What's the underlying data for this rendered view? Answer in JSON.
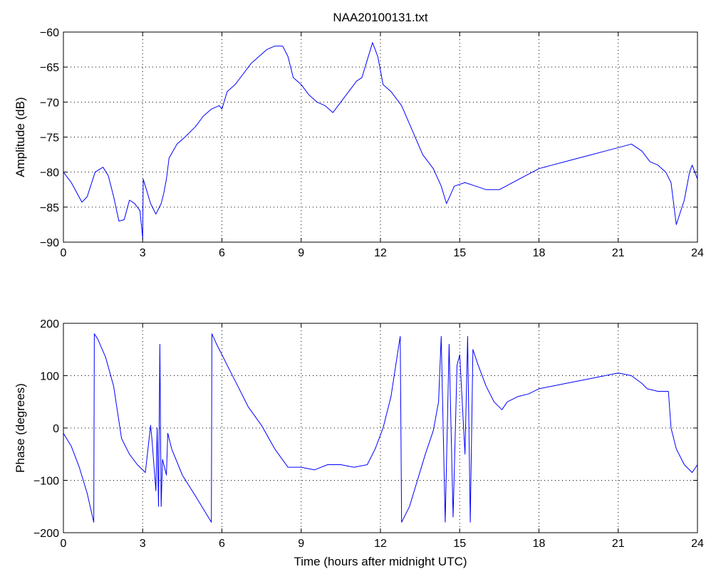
{
  "figure": {
    "title": "NAA20100131.txt"
  },
  "chart_data": [
    {
      "type": "line",
      "title": "NAA20100131.txt",
      "xlabel": "",
      "ylabel": "Amplitude (dB)",
      "xlim": [
        0,
        24
      ],
      "ylim": [
        -90,
        -60
      ],
      "xticks": [
        0,
        3,
        6,
        9,
        12,
        15,
        18,
        21,
        24
      ],
      "yticks": [
        -90,
        -85,
        -80,
        -75,
        -70,
        -65,
        -60
      ],
      "grid": true,
      "color": "#0000ff",
      "series": [
        {
          "x": [
            0,
            0.3,
            0.7,
            0.9,
            1.2,
            1.5,
            1.7,
            1.9,
            2.1,
            2.3,
            2.5,
            2.7,
            2.9,
            3.0,
            3.02,
            3.1,
            3.3,
            3.5,
            3.7,
            3.8,
            3.9,
            4.0,
            4.3,
            4.6,
            5.0,
            5.3,
            5.6,
            5.9,
            6.0,
            6.2,
            6.5,
            6.8,
            7.1,
            7.4,
            7.7,
            8.0,
            8.3,
            8.5,
            8.7,
            9.0,
            9.3,
            9.6,
            9.9,
            10.2,
            10.5,
            10.8,
            11.1,
            11.3,
            11.5,
            11.7,
            11.9,
            12.1,
            12.4,
            12.8,
            13.2,
            13.6,
            14.0,
            14.3,
            14.5,
            14.8,
            15.2,
            15.6,
            16.0,
            16.5,
            17.0,
            17.5,
            18.0,
            18.5,
            19.0,
            19.5,
            20.0,
            20.5,
            21.0,
            21.5,
            21.9,
            22.2,
            22.5,
            22.8,
            23.0,
            23.2,
            23.5,
            23.7,
            23.8,
            24.0
          ],
          "y": [
            -80,
            -81.5,
            -84.3,
            -83.5,
            -80,
            -79.3,
            -80.5,
            -83.5,
            -87,
            -86.8,
            -84,
            -84.5,
            -85.5,
            -89.5,
            -81,
            -82,
            -84.5,
            -86,
            -84.5,
            -83,
            -81,
            -78,
            -76,
            -75,
            -73.5,
            -72,
            -71,
            -70.5,
            -71,
            -68.5,
            -67.5,
            -66,
            -64.5,
            -63.5,
            -62.5,
            -62,
            -62,
            -63.5,
            -66.5,
            -67.5,
            -69,
            -70,
            -70.5,
            -71.5,
            -70,
            -68.5,
            -67,
            -66.5,
            -64,
            -61.5,
            -63.5,
            -67.5,
            -68.5,
            -70.5,
            -74,
            -77.5,
            -79.5,
            -82,
            -84.5,
            -82,
            -81.5,
            -82,
            -82.5,
            -82.5,
            -81.5,
            -80.5,
            -79.5,
            -79,
            -78.5,
            -78,
            -77.5,
            -77,
            -76.5,
            -76,
            -77,
            -78.5,
            -79,
            -80,
            -81.5,
            -87.5,
            -84,
            -80,
            -79,
            -81
          ]
        }
      ]
    },
    {
      "type": "line",
      "title": "",
      "xlabel": "Time (hours after midnight UTC)",
      "ylabel": "Phase (degrees)",
      "xlim": [
        0,
        24
      ],
      "ylim": [
        -200,
        200
      ],
      "xticks": [
        0,
        3,
        6,
        9,
        12,
        15,
        18,
        21,
        24
      ],
      "yticks": [
        -200,
        -100,
        0,
        100,
        200
      ],
      "grid": true,
      "color": "#0000ff",
      "series": [
        {
          "x": [
            0,
            0.3,
            0.6,
            0.9,
            1.15,
            1.17,
            1.3,
            1.6,
            1.9,
            2.2,
            2.5,
            2.8,
            3.1,
            3.3,
            3.35,
            3.5,
            3.55,
            3.6,
            3.65,
            3.7,
            3.75,
            3.9,
            3.95,
            4.1,
            4.5,
            5.0,
            5.6,
            5.62,
            5.8,
            6.2,
            6.6,
            7.0,
            7.5,
            8.0,
            8.5,
            9.0,
            9.5,
            10.0,
            10.5,
            11.0,
            11.5,
            11.8,
            12.1,
            12.4,
            12.7,
            12.75,
            12.8,
            13.1,
            13.4,
            13.7,
            14.0,
            14.2,
            14.3,
            14.45,
            14.6,
            14.75,
            14.9,
            15.0,
            15.2,
            15.3,
            15.4,
            15.5,
            15.7,
            16.0,
            16.3,
            16.6,
            16.8,
            17.2,
            17.6,
            18.0,
            18.5,
            19.0,
            19.5,
            20.0,
            20.5,
            21.0,
            21.5,
            21.9,
            22.1,
            22.5,
            22.9,
            23.0,
            23.2,
            23.5,
            23.8,
            24.0
          ],
          "y": [
            -10,
            -35,
            -75,
            -125,
            -180,
            180,
            170,
            135,
            80,
            -20,
            -50,
            -70,
            -85,
            5,
            -20,
            -120,
            0,
            -150,
            160,
            -150,
            -60,
            -90,
            -10,
            -40,
            -90,
            -130,
            -180,
            180,
            160,
            120,
            80,
            40,
            5,
            -40,
            -75,
            -75,
            -80,
            -70,
            -70,
            -75,
            -70,
            -40,
            0,
            60,
            160,
            175,
            -180,
            -150,
            -100,
            -50,
            -5,
            50,
            175,
            -180,
            160,
            -170,
            120,
            140,
            -50,
            175,
            -180,
            150,
            120,
            80,
            50,
            35,
            50,
            60,
            65,
            75,
            80,
            85,
            90,
            95,
            100,
            105,
            100,
            85,
            75,
            70,
            70,
            0,
            -40,
            -70,
            -85,
            -70
          ]
        }
      ]
    }
  ]
}
